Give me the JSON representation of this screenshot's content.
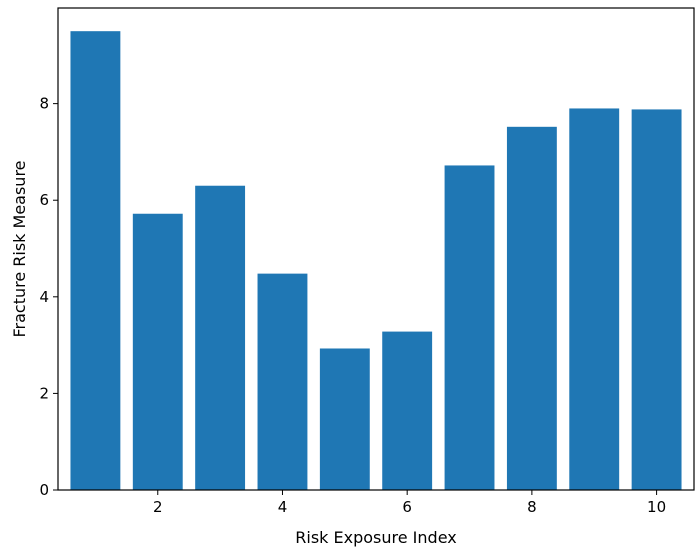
{
  "chart_data": {
    "type": "bar",
    "x": [
      1,
      2,
      3,
      4,
      5,
      6,
      7,
      8,
      9,
      10
    ],
    "values": [
      9.5,
      5.72,
      6.3,
      4.48,
      2.93,
      3.28,
      6.72,
      7.52,
      7.9,
      7.88
    ],
    "title": "",
    "xlabel": "Risk Exposure Index",
    "ylabel": "Fracture Risk Measure",
    "xlim": [
      0.4,
      10.6
    ],
    "ylim": [
      0,
      9.98
    ],
    "xticks": [
      2,
      4,
      6,
      8,
      10
    ],
    "yticks": [
      0,
      2,
      4,
      6,
      8
    ],
    "grid": false,
    "bar_color": "#1f77b4"
  }
}
